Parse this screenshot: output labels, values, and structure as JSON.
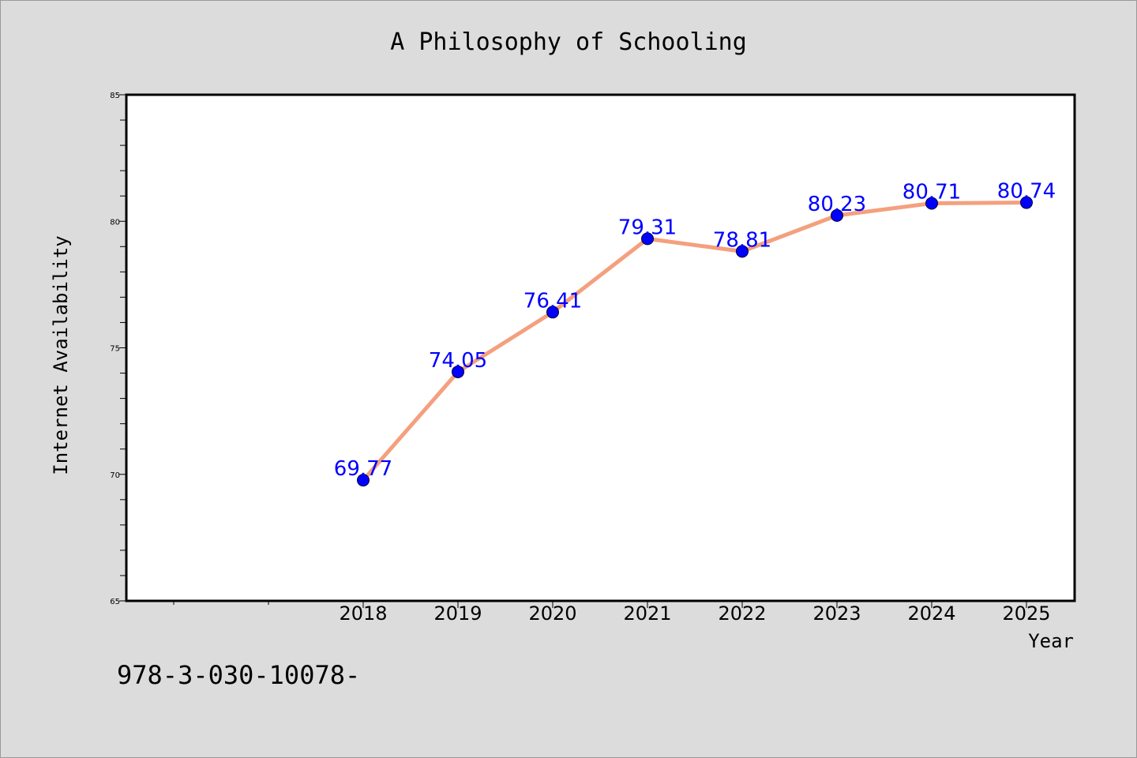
{
  "chart_data": {
    "type": "line",
    "title": "A Philosophy of Schooling",
    "xlabel": "Year",
    "ylabel": "Internet Availability",
    "x": [
      "2018",
      "2019",
      "2020",
      "2021",
      "2022",
      "2023",
      "2024",
      "2025"
    ],
    "series": [
      {
        "values": [
          69.77,
          74.05,
          76.41,
          79.31,
          78.81,
          80.23,
          80.71,
          80.74
        ],
        "data_labels": [
          "69.77",
          "74.05",
          "76.41",
          "79.31",
          "78.81",
          "80.23",
          "80.71",
          "80.74"
        ]
      }
    ],
    "ylim": [
      65,
      85
    ],
    "yticks": [
      "65",
      "70",
      "75",
      "80",
      "85"
    ],
    "grid": false,
    "line_color": "#f4a07e",
    "marker_color": "#0000ff",
    "label_color": "#0000ff",
    "background_color": "#dcdcdc",
    "plot_background_color": "#ffffff"
  },
  "annotation": {
    "text": "978-3-030-10078-"
  }
}
